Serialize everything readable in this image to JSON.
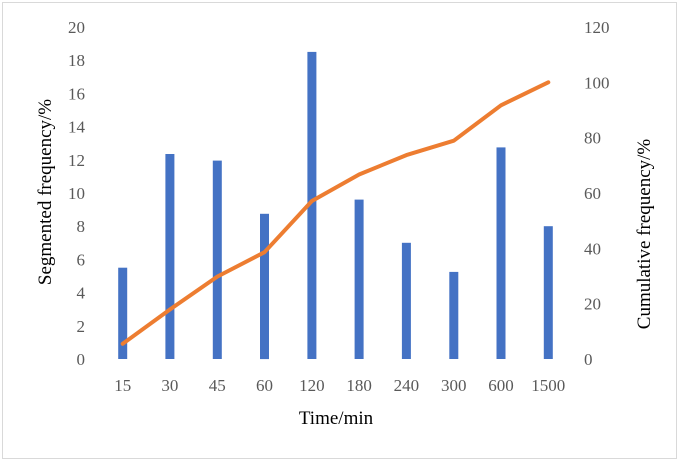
{
  "chart_data": {
    "type": "bar",
    "categories": [
      "15",
      "30",
      "45",
      "60",
      "120",
      "180",
      "240",
      "300",
      "600",
      "1500"
    ],
    "xlabel": "Time/min",
    "ylabel": "Segmented frequency/%",
    "y2label": "Cumulative frequency/%",
    "ylim": [
      0,
      20
    ],
    "y2lim": [
      0,
      120
    ],
    "yticks": [
      "0",
      "2",
      "4",
      "6",
      "8",
      "10",
      "12",
      "14",
      "16",
      "18",
      "20"
    ],
    "y2ticks": [
      "0",
      "20",
      "40",
      "60",
      "80",
      "100",
      "120"
    ],
    "grid": false,
    "legend": "none",
    "series": [
      {
        "type": "bar",
        "axis": "left",
        "color": "#4472c4",
        "values": [
          5.5,
          12.35,
          11.95,
          8.75,
          18.5,
          9.6,
          7.0,
          5.25,
          12.75,
          8.0
        ]
      },
      {
        "type": "line",
        "axis": "right",
        "color": "#ed7d31",
        "values": [
          5.5,
          17.9,
          29.8,
          38.6,
          57.1,
          66.7,
          73.7,
          78.9,
          91.7,
          100
        ]
      }
    ]
  }
}
